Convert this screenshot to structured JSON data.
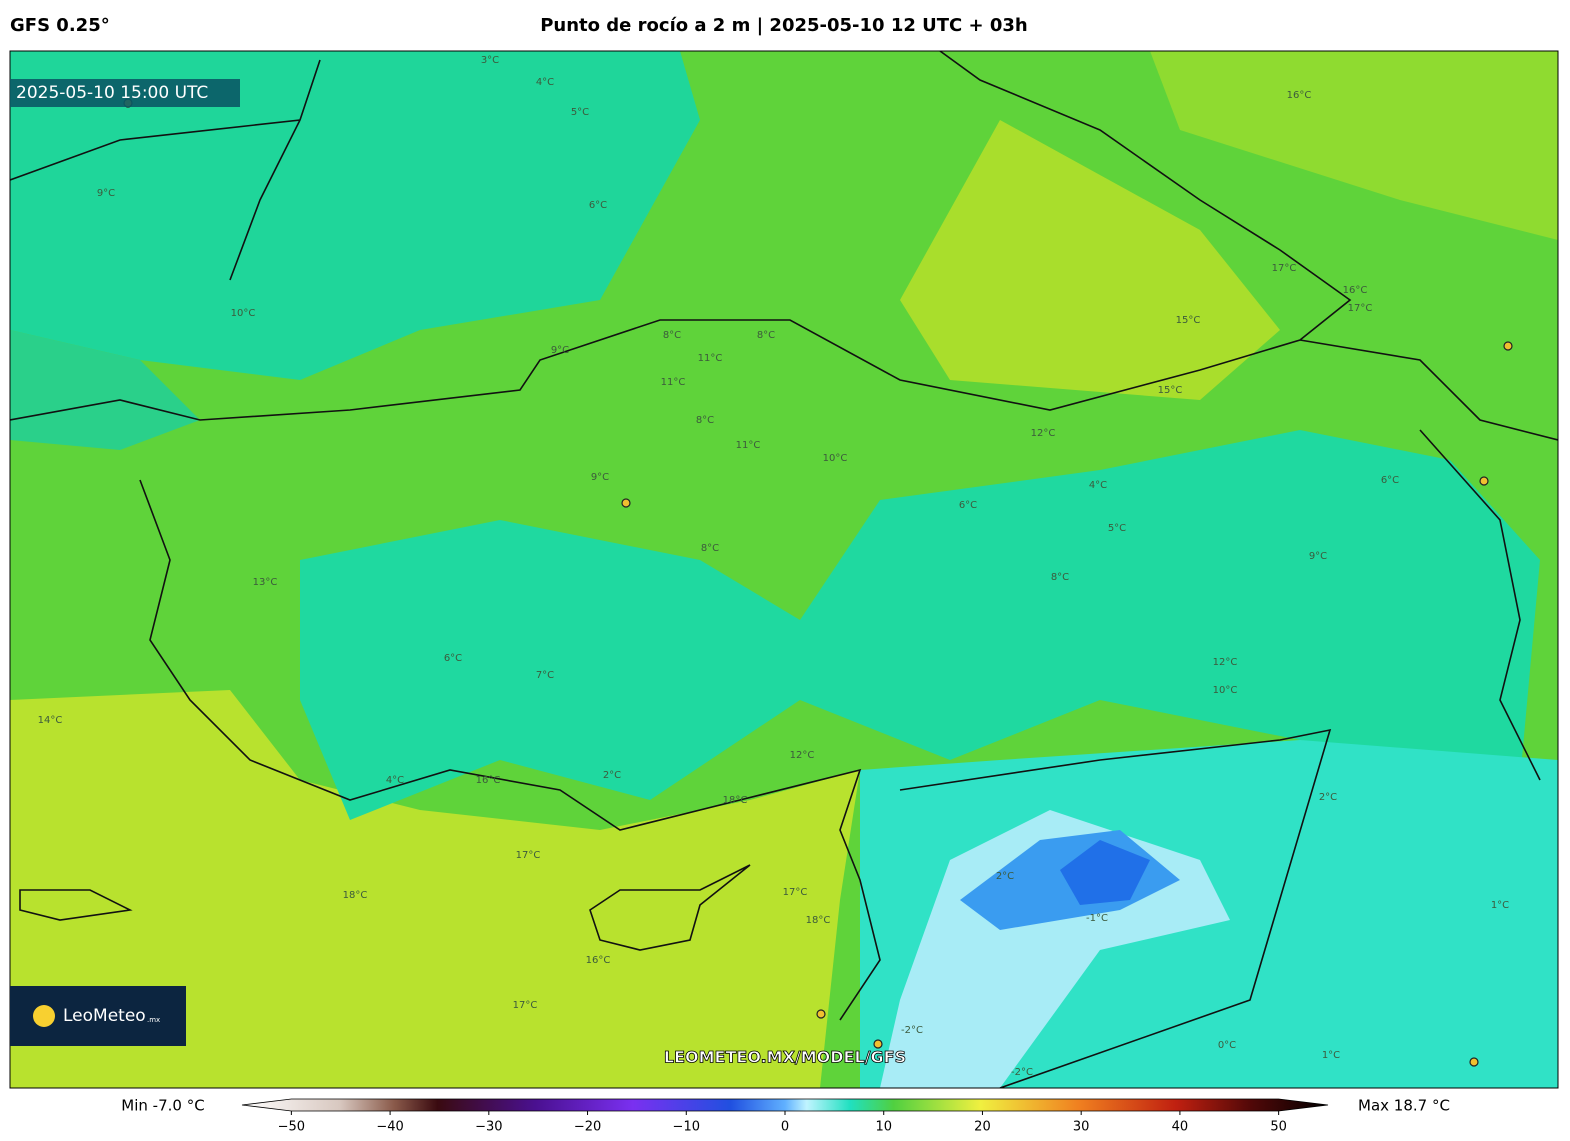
{
  "header": {
    "model": "GFS 0.25°",
    "title": "Punto de rocío a 2 m | 2025-05-10 12 UTC + 03h"
  },
  "map": {
    "valid_time": "2025-05-10 15:00 UTC",
    "url": "LEOMETEO.MX/MODEL/GFS",
    "logo": {
      "name": "LeoMeteo",
      "suffix": ".mx"
    },
    "contour_labels": [
      "3°C",
      "4°C",
      "5°C",
      "6°C",
      "9°C",
      "8°C",
      "10°C",
      "9°C",
      "8°C",
      "8°C",
      "11°C",
      "11°C",
      "9°C",
      "8°C",
      "11°C",
      "10°C",
      "12°C",
      "15°C",
      "15°C",
      "17°C",
      "16°C",
      "16°C",
      "6°C",
      "4°C",
      "5°C",
      "6°C",
      "9°C",
      "8°C",
      "6°C",
      "7°C",
      "2°C",
      "4°C",
      "16°C",
      "12°C",
      "18°C",
      "17°C",
      "18°C",
      "17°C",
      "16°C",
      "18°C",
      "17°C",
      "2°C",
      "-2°C",
      "-1°C",
      "-2°C",
      "0°C",
      "1°C",
      "1°C",
      "2°C",
      "12°C",
      "10°C",
      "13°C",
      "14°C",
      "17°C"
    ]
  },
  "colorbar": {
    "min_label": "Min -7.0 °C",
    "max_label": "Max 18.7 °C",
    "ticks": [
      {
        "value": -50,
        "label": "−50"
      },
      {
        "value": -40,
        "label": "−40"
      },
      {
        "value": -30,
        "label": "−30"
      },
      {
        "value": -20,
        "label": "−20"
      },
      {
        "value": -10,
        "label": "−10"
      },
      0,
      10,
      20,
      30,
      40,
      50
    ],
    "lim": [
      -55,
      55
    ]
  }
}
